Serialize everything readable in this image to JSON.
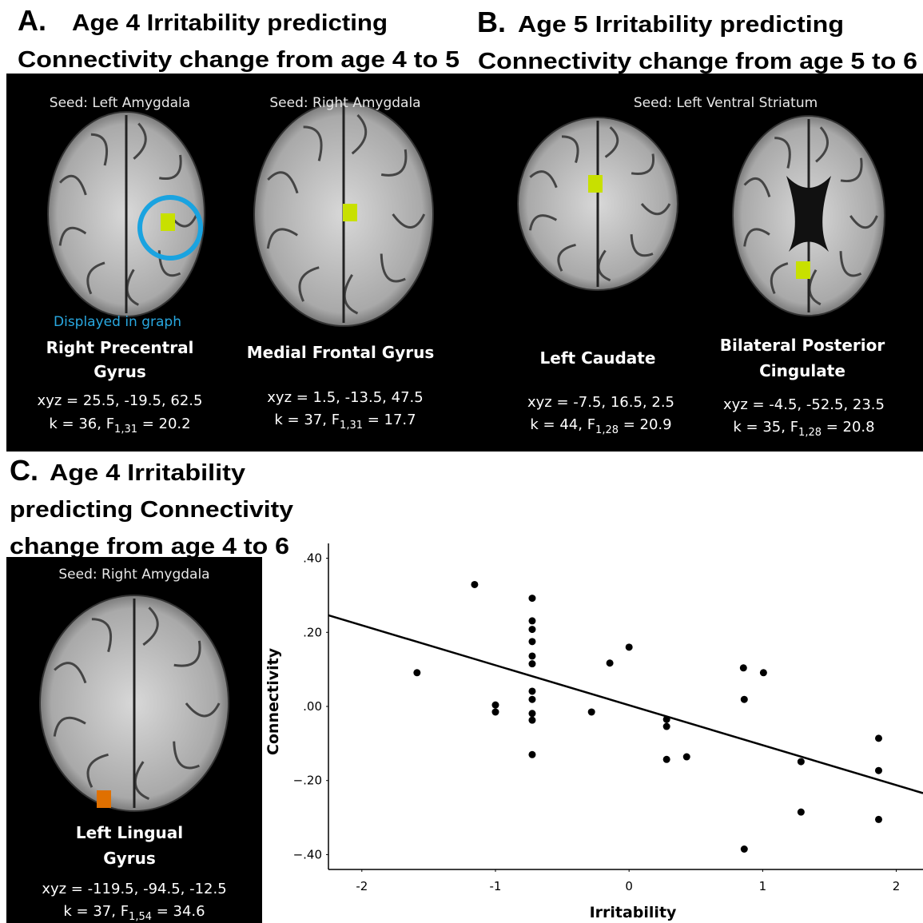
{
  "panels": [
    {
      "letter": "A.",
      "title_lines": [
        "Age 4 Irritability predicting",
        "Connectivity change from age 4 to 5"
      ],
      "images": [
        {
          "seed": "Seed: Left Amygdala",
          "note": "Displayed in graph",
          "region": [
            "Right Precentral",
            "Gyrus"
          ],
          "xyz": "xyz = 25.5, -19.5, 62.5",
          "k": "k = 36, F",
          "sub": "1,31",
          "f": " = 20.2"
        },
        {
          "seed": "Seed: Right Amygdala",
          "region": [
            "Medial Frontal Gyrus"
          ],
          "xyz": "xyz = 1.5, -13.5, 47.5",
          "k": "k = 37, F",
          "sub": "1,31",
          "f": " = 17.7"
        }
      ]
    },
    {
      "letter": "B.",
      "title_lines": [
        "Age 5 Irritability predicting",
        "Connectivity change from age 5 to 6"
      ],
      "seed": "Seed: Left Ventral Striatum",
      "images": [
        {
          "region": [
            "Left Caudate"
          ],
          "xyz": "xyz = -7.5, 16.5, 2.5",
          "k": "k = 44, F",
          "sub": "1,28",
          "f": " = 20.9"
        },
        {
          "region": [
            "Bilateral Posterior",
            "Cingulate"
          ],
          "xyz": "xyz = -4.5, -52.5, 23.5",
          "k": "k = 35, F",
          "sub": "1,28",
          "f": " = 20.8"
        }
      ]
    },
    {
      "letter": "C.",
      "title_lines": [
        "Age 4 Irritability",
        "predicting Connectivity",
        "change from age 4 to 6"
      ],
      "images": [
        {
          "seed": "Seed: Right Amygdala",
          "region": [
            "Left Lingual",
            "Gyrus"
          ],
          "xyz": "xyz = -119.5, -94.5, -12.5",
          "k": "k = 37, F",
          "sub": "1,54",
          "f": " = 34.6"
        }
      ]
    }
  ],
  "chart_data": {
    "type": "scatter",
    "x_label": "Irritability",
    "y_label": "Connectivity",
    "color": "#000000",
    "x": [
      -1.156,
      -1.587,
      -1.0,
      -1.0,
      -0.725,
      -0.725,
      -0.725,
      -0.725,
      -0.725,
      -0.725,
      -0.725,
      -0.725,
      -0.725,
      -0.725,
      -0.725,
      -0.281,
      -0.144,
      0.0,
      0.281,
      0.281,
      0.281,
      0.431,
      0.856,
      1.006,
      0.862,
      1.287,
      1.287,
      0.862,
      1.868,
      1.868,
      1.868
    ],
    "y": [
      0.329,
      0.091,
      0.004,
      -0.015,
      0.292,
      0.231,
      0.208,
      0.175,
      0.136,
      0.115,
      0.041,
      0.019,
      -0.019,
      -0.037,
      -0.13,
      -0.015,
      0.117,
      0.16,
      -0.035,
      -0.054,
      -0.143,
      -0.136,
      0.104,
      0.091,
      0.019,
      -0.149,
      -0.285,
      -0.385,
      -0.086,
      -0.173,
      -0.305
    ],
    "fit": {
      "x": [
        -2.25,
        2.2
      ],
      "y": [
        0.246,
        -0.234
      ]
    },
    "xlim": [
      -2.25,
      2.2
    ],
    "ylim": [
      -0.44,
      0.44
    ],
    "xticks": [
      -2,
      -1,
      0,
      1,
      2
    ],
    "yticks": [
      {
        "value": 0.4,
        "label": ".40"
      },
      {
        "value": 0.2,
        "label": ".20"
      },
      {
        "value": 0.0,
        "label": ".00"
      },
      {
        "value": -0.2,
        "label": "−.20"
      },
      {
        "value": -0.4,
        "label": "−.40"
      }
    ]
  }
}
